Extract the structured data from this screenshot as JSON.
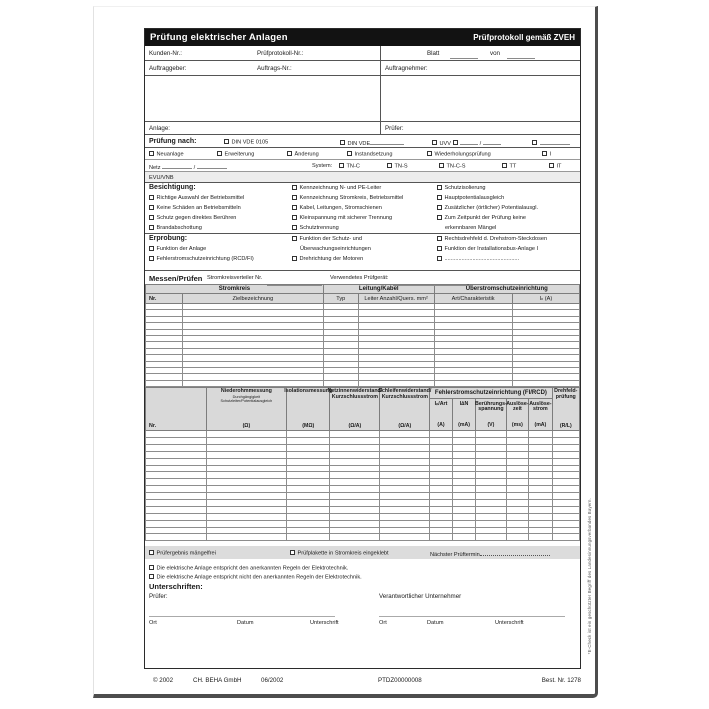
{
  "title": {
    "left": "Prüfung elektrischer Anlagen",
    "right": "Prüfprotokoll gemäß ZVEH"
  },
  "ids": {
    "kunden": "Kunden-Nr.:",
    "protokoll": "Prüfprotokoll-Nr.:",
    "blatt": "Blatt",
    "von": "von"
  },
  "parties": {
    "auftraggeber": "Auftraggeber:",
    "auftrags_nr": "Auftrags-Nr.:",
    "auftragnehmer": "Auftragnehmer:",
    "anlage": "Anlage:",
    "pruefer": "Prüfer:"
  },
  "pruefung_nach": {
    "label": "Prüfung nach:",
    "din_vde_0105": "DIN VDE 0105",
    "din_vde": "DIN VDE",
    "uvv": "UVV",
    "slash": "/"
  },
  "arten": [
    "Neuanlage",
    "Erweiterung",
    "Änderung",
    "Instandsetzung",
    "Wiederholungsprüfung",
    "I"
  ],
  "netz": {
    "netz": "Netz",
    "slash": "/",
    "system": "System:",
    "types": [
      "TN-C",
      "TN-S",
      "TN-C-S",
      "TT",
      "IT"
    ],
    "evu": "EVU/VNB"
  },
  "besichtigung": {
    "heading": "Besichtigung:",
    "col1": [
      "Richtige Auswahl der Betriebsmittel",
      "Keine Schäden an Betriebsmitteln",
      "Schutz gegen direktes Berühren",
      "Brandabschottung"
    ],
    "col2": [
      "Kennzeichnung N- und PE-Leiter",
      "Kennzeichnung Stromkreis, Betriebsmittel",
      "Kabel, Leitungen, Stromschienen",
      "Kleinspannung mit sicherer Trennung",
      "Schutztrennung"
    ],
    "col3": [
      "Schutzisolierung",
      "Hauptpotentialausgleich",
      "Zusätzlicher (örtlicher) Potentialausgl.",
      "Zum Zeitpunkt der Prüfung keine"
    ],
    "col3_cont": "erkennbaren Mängel"
  },
  "erprobung": {
    "heading": "Erprobung:",
    "col1": [
      "Funktion der Anlage",
      "Fehlerstromschutzeinrichtung (RCD/FI)"
    ],
    "col2_line1": "Funktion der Schutz- und",
    "col2_line2": "Überwachungseinrichtungen",
    "col2_line3": "Drehrichtung der Motoren",
    "col3_line1": "Rechtsdrehfeld d. Drehstrom-Steckdosen",
    "col3_line2": "Funktion der Installationsbus-Anlage I",
    "col3_line3": "................................................"
  },
  "messen": {
    "heading": "Messen/Prüfen",
    "verteiler": "Stromkreisverteiler Nr.",
    "geraet": "Verwendetes Prüfgerät:"
  },
  "table1": {
    "groups": [
      "Stromkreis",
      "Leitung/Kabel",
      "Überstromschutzeinrichtung"
    ],
    "cols": [
      "Nr.",
      "Zielbezeichnung",
      "Typ",
      "Leiter Anzahl/Quers. mm²",
      "Art/Charakteristik",
      "Iₙ (A)"
    ],
    "empty_rows": 13
  },
  "table2": {
    "nr": "Nr.",
    "nieder": {
      "l1": "Niederohmmessung",
      "s1": "Durchgängigkeit",
      "s2": "Schutzleiter/Potentialausgleich",
      "unit": "(Ω)"
    },
    "iso": {
      "l1": "Isolationsmessung",
      "unit": "(MΩ)"
    },
    "netzinnen": {
      "l1": "Netzinnenwiderstand/",
      "l2": "Kurzschlussstrom",
      "unit": "(Ω/A)"
    },
    "schleifen": {
      "l1": "Schleifenwiderstand/",
      "l2": "Kurzschlussstrom",
      "unit": "(Ω/A)"
    },
    "fi_group": "Fehlerstromschutzeinrichtung (FI/RCD)",
    "fi_cols": [
      {
        "l1": "Iₙ/Art",
        "unit": "(A)"
      },
      {
        "l1": "I∆N",
        "unit": "(mA)"
      },
      {
        "l1": "Berührungs-",
        "l2": "spannung",
        "unit": "(V)"
      },
      {
        "l1": "Auslöse-",
        "l2": "zeit",
        "unit": "(ms)"
      },
      {
        "l1": "Auslöse-",
        "l2": "strom",
        "unit": "(mA)"
      }
    ],
    "drehfeld": {
      "l1": "Drehfeld-",
      "l2": "prüfung",
      "unit": "(R/L)"
    },
    "empty_rows": 16
  },
  "result": {
    "maengelfrei": "Prüfergebnis mängelfrei",
    "plakette": "Prüfplakette in Stromkreis eingeklebt",
    "termin": "Nächster Prüftermin"
  },
  "statements": [
    "Die elektrische Anlage entspricht den anerkannten Regeln der Elektrotechnik.",
    "Die elektrische Anlage entspricht nicht den anerkannten Regeln der Elektrotechnik."
  ],
  "signatures": {
    "heading": "Unterschriften:",
    "pruefer": "Prüfer:",
    "unternehmer": "Verantwortlicher Unternehmer",
    "ort": "Ort",
    "datum": "Datum",
    "unterschrift": "Unterschrift"
  },
  "footer": {
    "copyright": "© 2002",
    "company": "CH. BEHA GmbH",
    "date": "06/2002",
    "code": "PTDZ00000008",
    "bestnr": "Best. Nr. 1278"
  },
  "side_note": "*E-Check ist ein geschützter Begriff des Landesinnungsverbandes Bayern.",
  "colors": {
    "header_bg": "#d9d9d9",
    "bar_bg": "#dcdcdc",
    "title_bg": "#121212",
    "frame": "#2b2b2b",
    "paper": "#ffffff"
  }
}
